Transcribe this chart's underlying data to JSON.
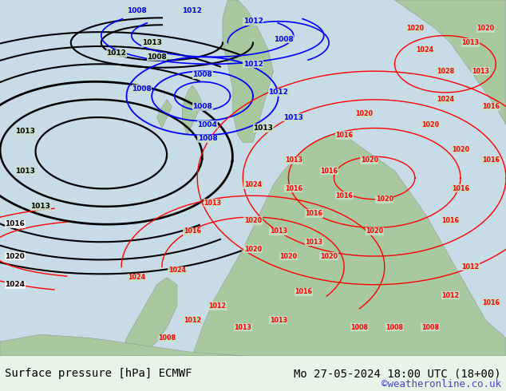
{
  "title_left": "Surface pressure [hPa] ECMWF",
  "title_right": "Mo 27-05-2024 18:00 UTC (18+00)",
  "watermark": "©weatheronline.co.uk",
  "bg_color": "#e8f4e8",
  "map_bg": "#c8e0c8",
  "sea_color": "#c8dce8",
  "land_color": "#a8c8a0",
  "fig_width": 6.34,
  "fig_height": 4.9,
  "dpi": 100,
  "bottom_bar_color": "#f0f0f0",
  "bottom_text_color": "#000000",
  "watermark_color": "#4444cc",
  "title_fontsize": 10,
  "watermark_fontsize": 9
}
